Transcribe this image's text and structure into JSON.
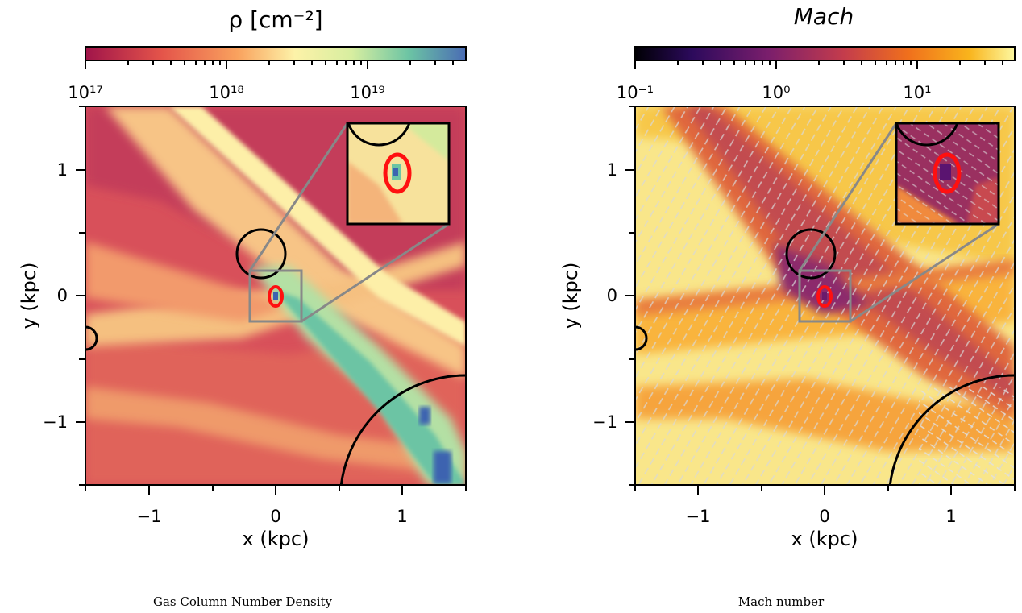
{
  "panels": [
    {
      "title": "ρ [cm⁻²]",
      "colorbar": {
        "ticks": [
          "10¹⁷",
          "10¹⁸",
          "10¹⁹"
        ],
        "colormap": "spectral"
      },
      "xlabel": "x (kpc)",
      "ylabel": "y (kpc)",
      "xticks": [
        "−1",
        "0",
        "1"
      ],
      "yticks": [
        "1",
        "0",
        "−1"
      ],
      "caption": "Gas Column Number Density"
    },
    {
      "title": "Mach",
      "colorbar": {
        "ticks": [
          "10⁻¹",
          "10⁰",
          "10¹"
        ],
        "colormap": "inferno"
      },
      "xlabel": "x (kpc)",
      "ylabel": "y (kpc)",
      "xticks": [
        "−1",
        "0",
        "1"
      ],
      "yticks": [
        "1",
        "0",
        "−1"
      ],
      "caption": "Mach number"
    }
  ],
  "colors": {
    "highlight_ring": "#ff1010",
    "zoom_box": "#888888",
    "circles": "#000000"
  }
}
